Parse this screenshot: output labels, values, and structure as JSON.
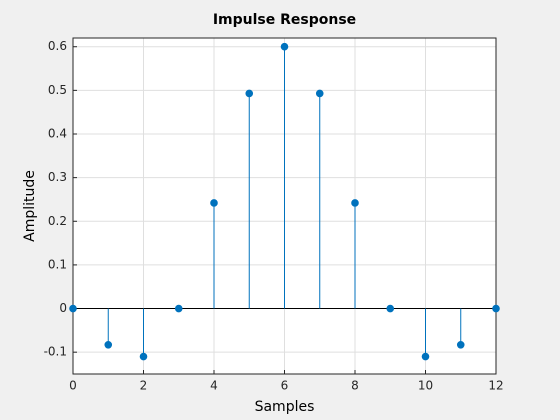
{
  "chart_data": {
    "type": "stem",
    "title": "Impulse Response",
    "xlabel": "Samples",
    "ylabel": "Amplitude",
    "x": [
      0,
      1,
      2,
      3,
      4,
      5,
      6,
      7,
      8,
      9,
      10,
      11,
      12
    ],
    "values": [
      0,
      -0.083,
      -0.11,
      0,
      0.242,
      0.493,
      0.6,
      0.493,
      0.242,
      0,
      -0.11,
      -0.083,
      0
    ],
    "color": "#0072bd",
    "xlim": [
      0,
      12
    ],
    "xticks": [
      0,
      2,
      4,
      6,
      8,
      10,
      12
    ],
    "ylim": [
      -0.15,
      0.62
    ],
    "yticks": [
      -0.1,
      0,
      0.1,
      0.2,
      0.3,
      0.4,
      0.5,
      0.6
    ],
    "grid": true
  }
}
